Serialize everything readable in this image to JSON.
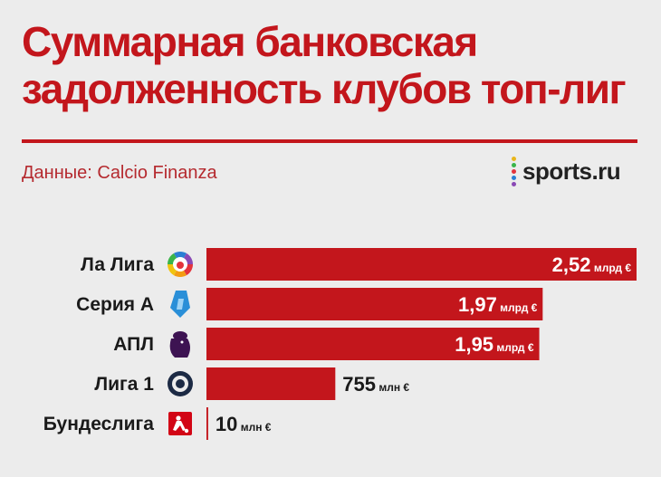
{
  "header": {
    "title_line1": "Суммарная банковская",
    "title_line2": "задолженность клубов топ-лиг",
    "source": "Данные: Calcio Finanza",
    "brand": "sports.ru"
  },
  "colors": {
    "accent": "#c3161c",
    "bar": "#c3161c",
    "background": "#ececec",
    "brand_dots": [
      "#e9b61b",
      "#3bb54a",
      "#e4333c",
      "#2a7fd4",
      "#8a49b5"
    ]
  },
  "chart_data": {
    "type": "bar",
    "orientation": "horizontal",
    "title": "Суммарная банковская задолженность клубов топ-лиг",
    "categories": [
      "Ла Лига",
      "Серия А",
      "АПЛ",
      "Лига 1",
      "Бундеслига"
    ],
    "values": [
      2520,
      1970,
      1950,
      755,
      10
    ],
    "unit": "млн €",
    "data_labels": [
      {
        "number": "2,52",
        "unit": "млрд €"
      },
      {
        "number": "1,97",
        "unit": "млрд €"
      },
      {
        "number": "1,95",
        "unit": "млрд €"
      },
      {
        "number": "755",
        "unit": "млн €"
      },
      {
        "number": "10",
        "unit": "млн €"
      }
    ],
    "icons": [
      "laliga-icon",
      "serie-a-icon",
      "premier-league-icon",
      "ligue1-icon",
      "bundesliga-icon"
    ],
    "xlim": [
      0,
      2520
    ],
    "grid": false,
    "legend": "none"
  }
}
